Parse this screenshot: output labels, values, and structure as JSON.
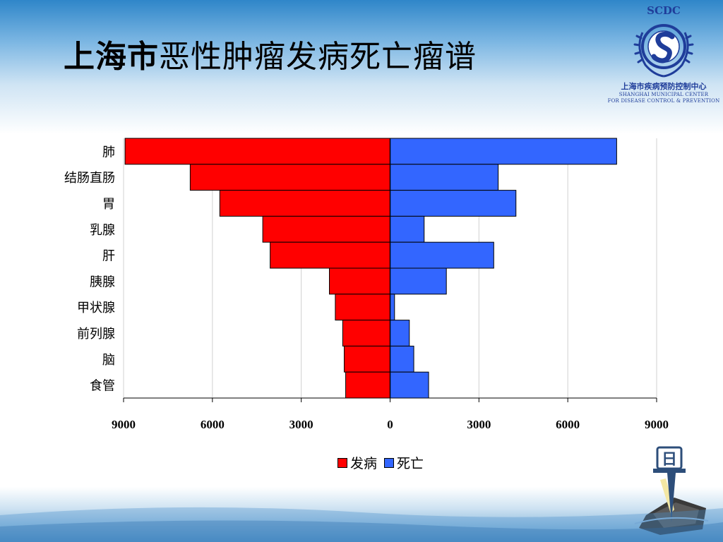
{
  "slide": {
    "title_bold": "上海市",
    "title_rest": "恶性肿瘤发病死亡瘤谱"
  },
  "logo": {
    "abbr": "SCDC",
    "name_cn": "上海市疾病预防控制中心",
    "name_en_1": "SHANGHAI MUNICIPAL CENTER",
    "name_en_2": "FOR DISEASE CONTROL & PREVENTION"
  },
  "decoration": {
    "badge_glyph": "日"
  },
  "colors": {
    "incidence": "#ff0000",
    "mortality": "#3366ff",
    "brand": "#1f3d9a"
  },
  "chart_data": {
    "type": "bar",
    "orientation": "horizontal-population-pyramid",
    "categories": [
      "肺",
      "结肠直肠",
      "胃",
      "乳腺",
      "肝",
      "胰腺",
      "甲状腺",
      "前列腺",
      "脑",
      "食管"
    ],
    "series": [
      {
        "name": "发病",
        "side": "left",
        "values": [
          8950,
          6750,
          5750,
          4300,
          4050,
          2050,
          1850,
          1600,
          1550,
          1500
        ]
      },
      {
        "name": "死亡",
        "side": "right",
        "values": [
          7650,
          3650,
          4250,
          1150,
          3500,
          1900,
          150,
          650,
          800,
          1300
        ]
      }
    ],
    "x_ticks": [
      "9000",
      "6000",
      "3000",
      "0",
      "3000",
      "6000",
      "9000"
    ],
    "xlim": [
      -9000,
      9000
    ],
    "grid": "vertical",
    "legend_position": "bottom",
    "title": "",
    "xlabel": "",
    "ylabel": ""
  }
}
